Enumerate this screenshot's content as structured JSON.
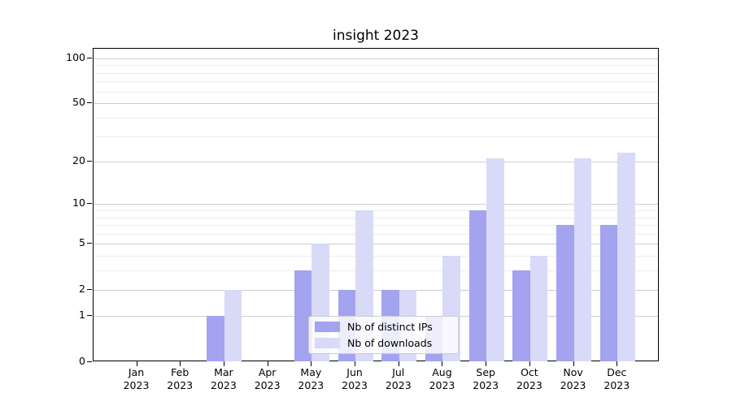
{
  "chart_data": {
    "type": "bar",
    "title": "insight 2023",
    "categories": [
      "Jan 2023",
      "Feb 2023",
      "Mar 2023",
      "Apr 2023",
      "May 2023",
      "Jun 2023",
      "Jul 2023",
      "Aug 2023",
      "Sep 2023",
      "Oct 2023",
      "Nov 2023",
      "Dec 2023"
    ],
    "series": [
      {
        "name": "Nb of distinct IPs",
        "color": "#a3a3f0",
        "values": [
          0,
          0,
          1,
          0,
          3,
          2,
          2,
          1,
          9,
          3,
          7,
          7
        ]
      },
      {
        "name": "Nb of downloads",
        "color": "#d9d9f8",
        "values": [
          0,
          0,
          2,
          0,
          5,
          9,
          2,
          4,
          21,
          4,
          21,
          23
        ]
      }
    ],
    "xlabel": "",
    "ylabel": "",
    "yscale": "log1p",
    "ylim": [
      0,
      116
    ],
    "yticks": [
      0,
      1,
      2,
      5,
      10,
      20,
      50,
      100
    ],
    "minor_yticks": [
      3,
      4,
      6,
      7,
      8,
      9,
      30,
      40,
      60,
      70,
      80,
      90
    ],
    "grid": true,
    "legend_position": "lower-center-inside",
    "colors": {
      "major_grid": "#cdcdcd",
      "minor_grid": "#ececec",
      "spine": "#000000",
      "background": "#ffffff"
    }
  }
}
